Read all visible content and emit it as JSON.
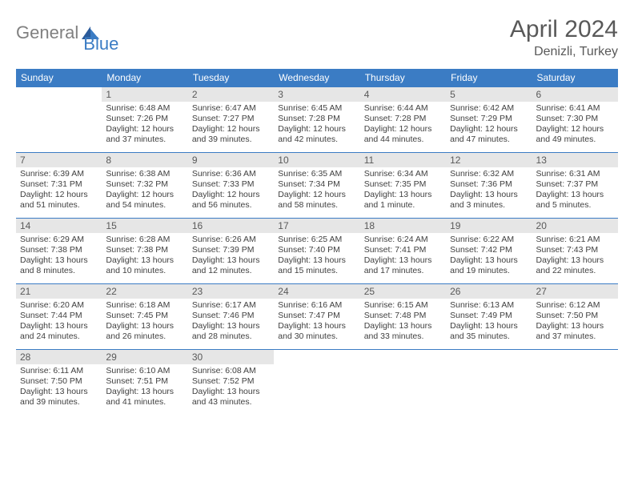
{
  "logo": {
    "part1": "General",
    "part2": "Blue"
  },
  "title": "April 2024",
  "location": "Denizli, Turkey",
  "colors": {
    "header_bg": "#3b7cc4",
    "daynum_bg": "#e6e6e6",
    "text_muted": "#595959",
    "text_body": "#404040",
    "logo_gray": "#808080",
    "logo_blue": "#3b7cc4",
    "border": "#3b7cc4",
    "background": "#ffffff"
  },
  "day_headers": [
    "Sunday",
    "Monday",
    "Tuesday",
    "Wednesday",
    "Thursday",
    "Friday",
    "Saturday"
  ],
  "weeks": [
    [
      {
        "n": "",
        "lines": [
          "",
          "",
          "",
          ""
        ]
      },
      {
        "n": "1",
        "lines": [
          "Sunrise: 6:48 AM",
          "Sunset: 7:26 PM",
          "Daylight: 12 hours",
          "and 37 minutes."
        ]
      },
      {
        "n": "2",
        "lines": [
          "Sunrise: 6:47 AM",
          "Sunset: 7:27 PM",
          "Daylight: 12 hours",
          "and 39 minutes."
        ]
      },
      {
        "n": "3",
        "lines": [
          "Sunrise: 6:45 AM",
          "Sunset: 7:28 PM",
          "Daylight: 12 hours",
          "and 42 minutes."
        ]
      },
      {
        "n": "4",
        "lines": [
          "Sunrise: 6:44 AM",
          "Sunset: 7:28 PM",
          "Daylight: 12 hours",
          "and 44 minutes."
        ]
      },
      {
        "n": "5",
        "lines": [
          "Sunrise: 6:42 AM",
          "Sunset: 7:29 PM",
          "Daylight: 12 hours",
          "and 47 minutes."
        ]
      },
      {
        "n": "6",
        "lines": [
          "Sunrise: 6:41 AM",
          "Sunset: 7:30 PM",
          "Daylight: 12 hours",
          "and 49 minutes."
        ]
      }
    ],
    [
      {
        "n": "7",
        "lines": [
          "Sunrise: 6:39 AM",
          "Sunset: 7:31 PM",
          "Daylight: 12 hours",
          "and 51 minutes."
        ]
      },
      {
        "n": "8",
        "lines": [
          "Sunrise: 6:38 AM",
          "Sunset: 7:32 PM",
          "Daylight: 12 hours",
          "and 54 minutes."
        ]
      },
      {
        "n": "9",
        "lines": [
          "Sunrise: 6:36 AM",
          "Sunset: 7:33 PM",
          "Daylight: 12 hours",
          "and 56 minutes."
        ]
      },
      {
        "n": "10",
        "lines": [
          "Sunrise: 6:35 AM",
          "Sunset: 7:34 PM",
          "Daylight: 12 hours",
          "and 58 minutes."
        ]
      },
      {
        "n": "11",
        "lines": [
          "Sunrise: 6:34 AM",
          "Sunset: 7:35 PM",
          "Daylight: 13 hours",
          "and 1 minute."
        ]
      },
      {
        "n": "12",
        "lines": [
          "Sunrise: 6:32 AM",
          "Sunset: 7:36 PM",
          "Daylight: 13 hours",
          "and 3 minutes."
        ]
      },
      {
        "n": "13",
        "lines": [
          "Sunrise: 6:31 AM",
          "Sunset: 7:37 PM",
          "Daylight: 13 hours",
          "and 5 minutes."
        ]
      }
    ],
    [
      {
        "n": "14",
        "lines": [
          "Sunrise: 6:29 AM",
          "Sunset: 7:38 PM",
          "Daylight: 13 hours",
          "and 8 minutes."
        ]
      },
      {
        "n": "15",
        "lines": [
          "Sunrise: 6:28 AM",
          "Sunset: 7:38 PM",
          "Daylight: 13 hours",
          "and 10 minutes."
        ]
      },
      {
        "n": "16",
        "lines": [
          "Sunrise: 6:26 AM",
          "Sunset: 7:39 PM",
          "Daylight: 13 hours",
          "and 12 minutes."
        ]
      },
      {
        "n": "17",
        "lines": [
          "Sunrise: 6:25 AM",
          "Sunset: 7:40 PM",
          "Daylight: 13 hours",
          "and 15 minutes."
        ]
      },
      {
        "n": "18",
        "lines": [
          "Sunrise: 6:24 AM",
          "Sunset: 7:41 PM",
          "Daylight: 13 hours",
          "and 17 minutes."
        ]
      },
      {
        "n": "19",
        "lines": [
          "Sunrise: 6:22 AM",
          "Sunset: 7:42 PM",
          "Daylight: 13 hours",
          "and 19 minutes."
        ]
      },
      {
        "n": "20",
        "lines": [
          "Sunrise: 6:21 AM",
          "Sunset: 7:43 PM",
          "Daylight: 13 hours",
          "and 22 minutes."
        ]
      }
    ],
    [
      {
        "n": "21",
        "lines": [
          "Sunrise: 6:20 AM",
          "Sunset: 7:44 PM",
          "Daylight: 13 hours",
          "and 24 minutes."
        ]
      },
      {
        "n": "22",
        "lines": [
          "Sunrise: 6:18 AM",
          "Sunset: 7:45 PM",
          "Daylight: 13 hours",
          "and 26 minutes."
        ]
      },
      {
        "n": "23",
        "lines": [
          "Sunrise: 6:17 AM",
          "Sunset: 7:46 PM",
          "Daylight: 13 hours",
          "and 28 minutes."
        ]
      },
      {
        "n": "24",
        "lines": [
          "Sunrise: 6:16 AM",
          "Sunset: 7:47 PM",
          "Daylight: 13 hours",
          "and 30 minutes."
        ]
      },
      {
        "n": "25",
        "lines": [
          "Sunrise: 6:15 AM",
          "Sunset: 7:48 PM",
          "Daylight: 13 hours",
          "and 33 minutes."
        ]
      },
      {
        "n": "26",
        "lines": [
          "Sunrise: 6:13 AM",
          "Sunset: 7:49 PM",
          "Daylight: 13 hours",
          "and 35 minutes."
        ]
      },
      {
        "n": "27",
        "lines": [
          "Sunrise: 6:12 AM",
          "Sunset: 7:50 PM",
          "Daylight: 13 hours",
          "and 37 minutes."
        ]
      }
    ],
    [
      {
        "n": "28",
        "lines": [
          "Sunrise: 6:11 AM",
          "Sunset: 7:50 PM",
          "Daylight: 13 hours",
          "and 39 minutes."
        ]
      },
      {
        "n": "29",
        "lines": [
          "Sunrise: 6:10 AM",
          "Sunset: 7:51 PM",
          "Daylight: 13 hours",
          "and 41 minutes."
        ]
      },
      {
        "n": "30",
        "lines": [
          "Sunrise: 6:08 AM",
          "Sunset: 7:52 PM",
          "Daylight: 13 hours",
          "and 43 minutes."
        ]
      },
      {
        "n": "",
        "lines": [
          "",
          "",
          "",
          ""
        ]
      },
      {
        "n": "",
        "lines": [
          "",
          "",
          "",
          ""
        ]
      },
      {
        "n": "",
        "lines": [
          "",
          "",
          "",
          ""
        ]
      },
      {
        "n": "",
        "lines": [
          "",
          "",
          "",
          ""
        ]
      }
    ]
  ]
}
